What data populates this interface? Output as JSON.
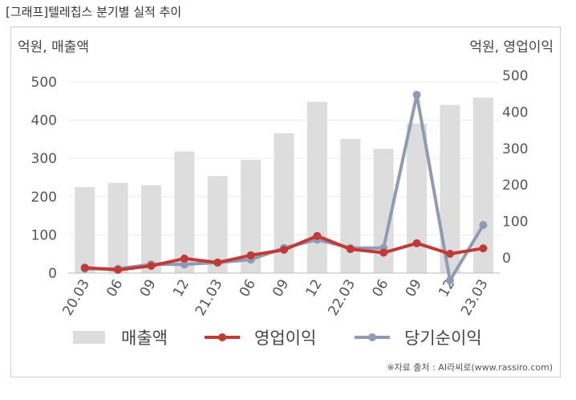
{
  "page_title": "[그래프]텔레칩스 분기별 실적 추이",
  "unit_left": "억원, 매출액",
  "unit_right": "억원, 영업이익",
  "source": "※자료 출처 : AI라씨로(www.rassiro.com)",
  "chart_data": {
    "type": "bar",
    "categories": [
      "20.03",
      "06",
      "09",
      "12",
      "21.03",
      "06",
      "09",
      "12",
      "22.03",
      "06",
      "09",
      "12",
      "23.03"
    ],
    "series": [
      {
        "name": "매출액",
        "type": "bar",
        "axis": "left",
        "color": "#dddddd",
        "values": [
          225,
          236,
          230,
          318,
          254,
          296,
          366,
          448,
          351,
          325,
          391,
          440,
          459
        ]
      },
      {
        "name": "영업이익",
        "type": "line",
        "axis": "right",
        "color": "#c23a36",
        "values": [
          -27,
          -33,
          -22,
          -2,
          -13,
          7,
          22,
          60,
          24,
          14,
          40,
          11,
          26
        ]
      },
      {
        "name": "당기순이익",
        "type": "line",
        "axis": "right",
        "color": "#8f9bb5",
        "values": [
          -30,
          -30,
          -18,
          -18,
          -13,
          -5,
          27,
          50,
          27,
          27,
          447,
          -62,
          90
        ]
      }
    ],
    "y_left": {
      "min": 0,
      "max": 500,
      "ticks": [
        0,
        100,
        200,
        300,
        400,
        500
      ]
    },
    "y_right": {
      "min": -40,
      "max": 500,
      "ticks": [
        0,
        100,
        200,
        300,
        400,
        500
      ]
    },
    "grid": true,
    "legend_position": "bottom"
  }
}
